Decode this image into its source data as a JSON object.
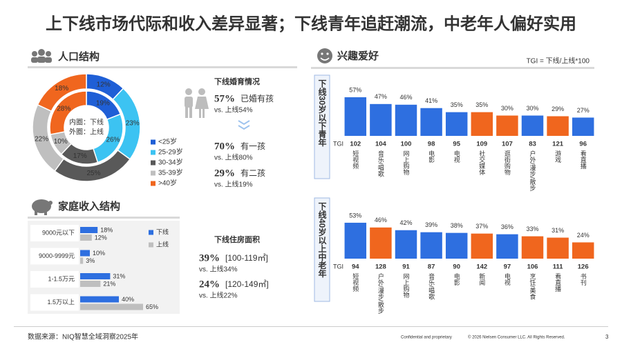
{
  "title": "上下线市场代际和收入差异显著；下线青年追赶潮流，中老年人偏好实用",
  "population": {
    "title": "人口结构"
  },
  "marriage": {
    "title": "下线婚育情况",
    "items": [
      {
        "pct": "57%",
        "text": "已婚有孩",
        "compare": "vs. 上线54%"
      },
      {
        "pct": "70%",
        "text": "有一孩",
        "compare": "vs. 上线80%"
      },
      {
        "pct": "29%",
        "text": "有二孩",
        "compare": "vs. 上线19%"
      }
    ]
  },
  "housing": {
    "title": "下线住房面积",
    "items": [
      {
        "pct": "39%",
        "text": "[100-119㎡]",
        "compare": "vs. 上线34%"
      },
      {
        "pct": "24%",
        "text": "[120-149㎡]",
        "compare": "vs. 上线22%"
      }
    ]
  },
  "interest": {
    "title": "兴趣爱好",
    "formula": "TGI = 下线/上线*100"
  },
  "footer": {
    "source": "数据来源：NIQ智慧全域洞察2025年",
    "confidential": "Confidential and proprietary",
    "copyright": "© 2026 Nielsen Consumer LLC. All Rights Reserved.",
    "page": "3"
  },
  "chart_data": [
    {
      "type": "donut",
      "categories": [
        "<25岁",
        "25-29岁",
        "30-34岁",
        "35-39岁",
        ">40岁"
      ],
      "colors": [
        "#1f5fd6",
        "#3cc3f2",
        "#595959",
        "#bfbfbf",
        "#f0661e"
      ],
      "series": [
        {
          "label": "内圈：下线",
          "values": [
            19,
            26,
            17,
            10,
            28
          ],
          "value_labels": [
            "19%",
            "26%",
            "17%",
            "10%",
            "28%"
          ]
        },
        {
          "label": "外圈：上线",
          "values": [
            12,
            23,
            25,
            22,
            18
          ],
          "value_labels": [
            "12%",
            "23%",
            "25%",
            "22%",
            "18%"
          ]
        }
      ]
    },
    {
      "type": "hbar",
      "title": "家庭收入结构",
      "categories": [
        "9000元以下",
        "9000-9999元",
        "1-1.5万元",
        "1.5万以上"
      ],
      "series": [
        {
          "name": "下线",
          "color": "#2e6fe0",
          "values": [
            18,
            10,
            31,
            40
          ],
          "value_labels": [
            "18%",
            "10%",
            "31%",
            "40%"
          ]
        },
        {
          "name": "上线",
          "color": "#bfbfbf",
          "values": [
            12,
            3,
            21,
            65
          ],
          "value_labels": [
            "12%",
            "3%",
            "21%",
            "65%"
          ]
        }
      ]
    },
    {
      "type": "bar",
      "title": "下线30岁以下青年",
      "tgi_label": "TGI",
      "categories": [
        "短视频",
        "音乐/唱歌",
        "网上购物",
        "电影",
        "电视",
        "社交媒体",
        "逛街购物",
        "户外/漫步/散步",
        "游戏",
        "看直播"
      ],
      "values": [
        57,
        47,
        46,
        41,
        35,
        35,
        30,
        30,
        29,
        27
      ],
      "value_labels": [
        "57%",
        "47%",
        "46%",
        "41%",
        "35%",
        "35%",
        "30%",
        "30%",
        "29%",
        "27%"
      ],
      "tgi": [
        102,
        104,
        100,
        98,
        95,
        109,
        107,
        83,
        121,
        96
      ],
      "colors": [
        "#2e6fe0",
        "#2e6fe0",
        "#2e6fe0",
        "#2e6fe0",
        "#2e6fe0",
        "#f0661e",
        "#f0661e",
        "#2e6fe0",
        "#f0661e",
        "#2e6fe0"
      ]
    },
    {
      "type": "bar",
      "title": "下线40岁以上中老年",
      "tgi_label": "TGI",
      "categories": [
        "短视频",
        "户外/漫步/散步",
        "网上购物",
        "音乐/唱歌",
        "电影",
        "新闻",
        "电视",
        "烹饪/美食",
        "看直播",
        "书刊"
      ],
      "values": [
        53,
        46,
        42,
        39,
        38,
        37,
        36,
        33,
        31,
        24
      ],
      "value_labels": [
        "53%",
        "46%",
        "42%",
        "39%",
        "38%",
        "37%",
        "36%",
        "33%",
        "31%",
        "24%"
      ],
      "tgi": [
        94,
        128,
        91,
        87,
        90,
        142,
        97,
        106,
        111,
        126
      ],
      "colors": [
        "#2e6fe0",
        "#f0661e",
        "#2e6fe0",
        "#2e6fe0",
        "#2e6fe0",
        "#f0661e",
        "#2e6fe0",
        "#f0661e",
        "#f0661e",
        "#f0661e"
      ]
    }
  ]
}
